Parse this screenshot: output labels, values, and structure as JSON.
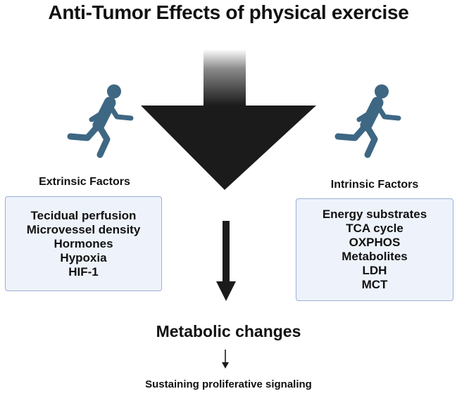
{
  "title": "Anti-Tumor Effects of physical exercise",
  "icons": {
    "runner": "running-person-icon"
  },
  "colors": {
    "runner": "#3e6784",
    "box_fill": "#eef3fb",
    "box_border": "#9bb0d4",
    "arrow": "#1b1b1b"
  },
  "extrinsic": {
    "label": "Extrinsic Factors",
    "items": [
      "Tecidual perfusion",
      "Microvessel density",
      "Hormones",
      "Hypoxia",
      "HIF-1"
    ]
  },
  "intrinsic": {
    "label": "Intrinsic Factors",
    "items": [
      "Energy substrates",
      "TCA cycle",
      "OXPHOS",
      "Metabolites",
      "LDH",
      "MCT"
    ]
  },
  "result": "Metabolic changes",
  "outcome": "Sustaining proliferative signaling"
}
